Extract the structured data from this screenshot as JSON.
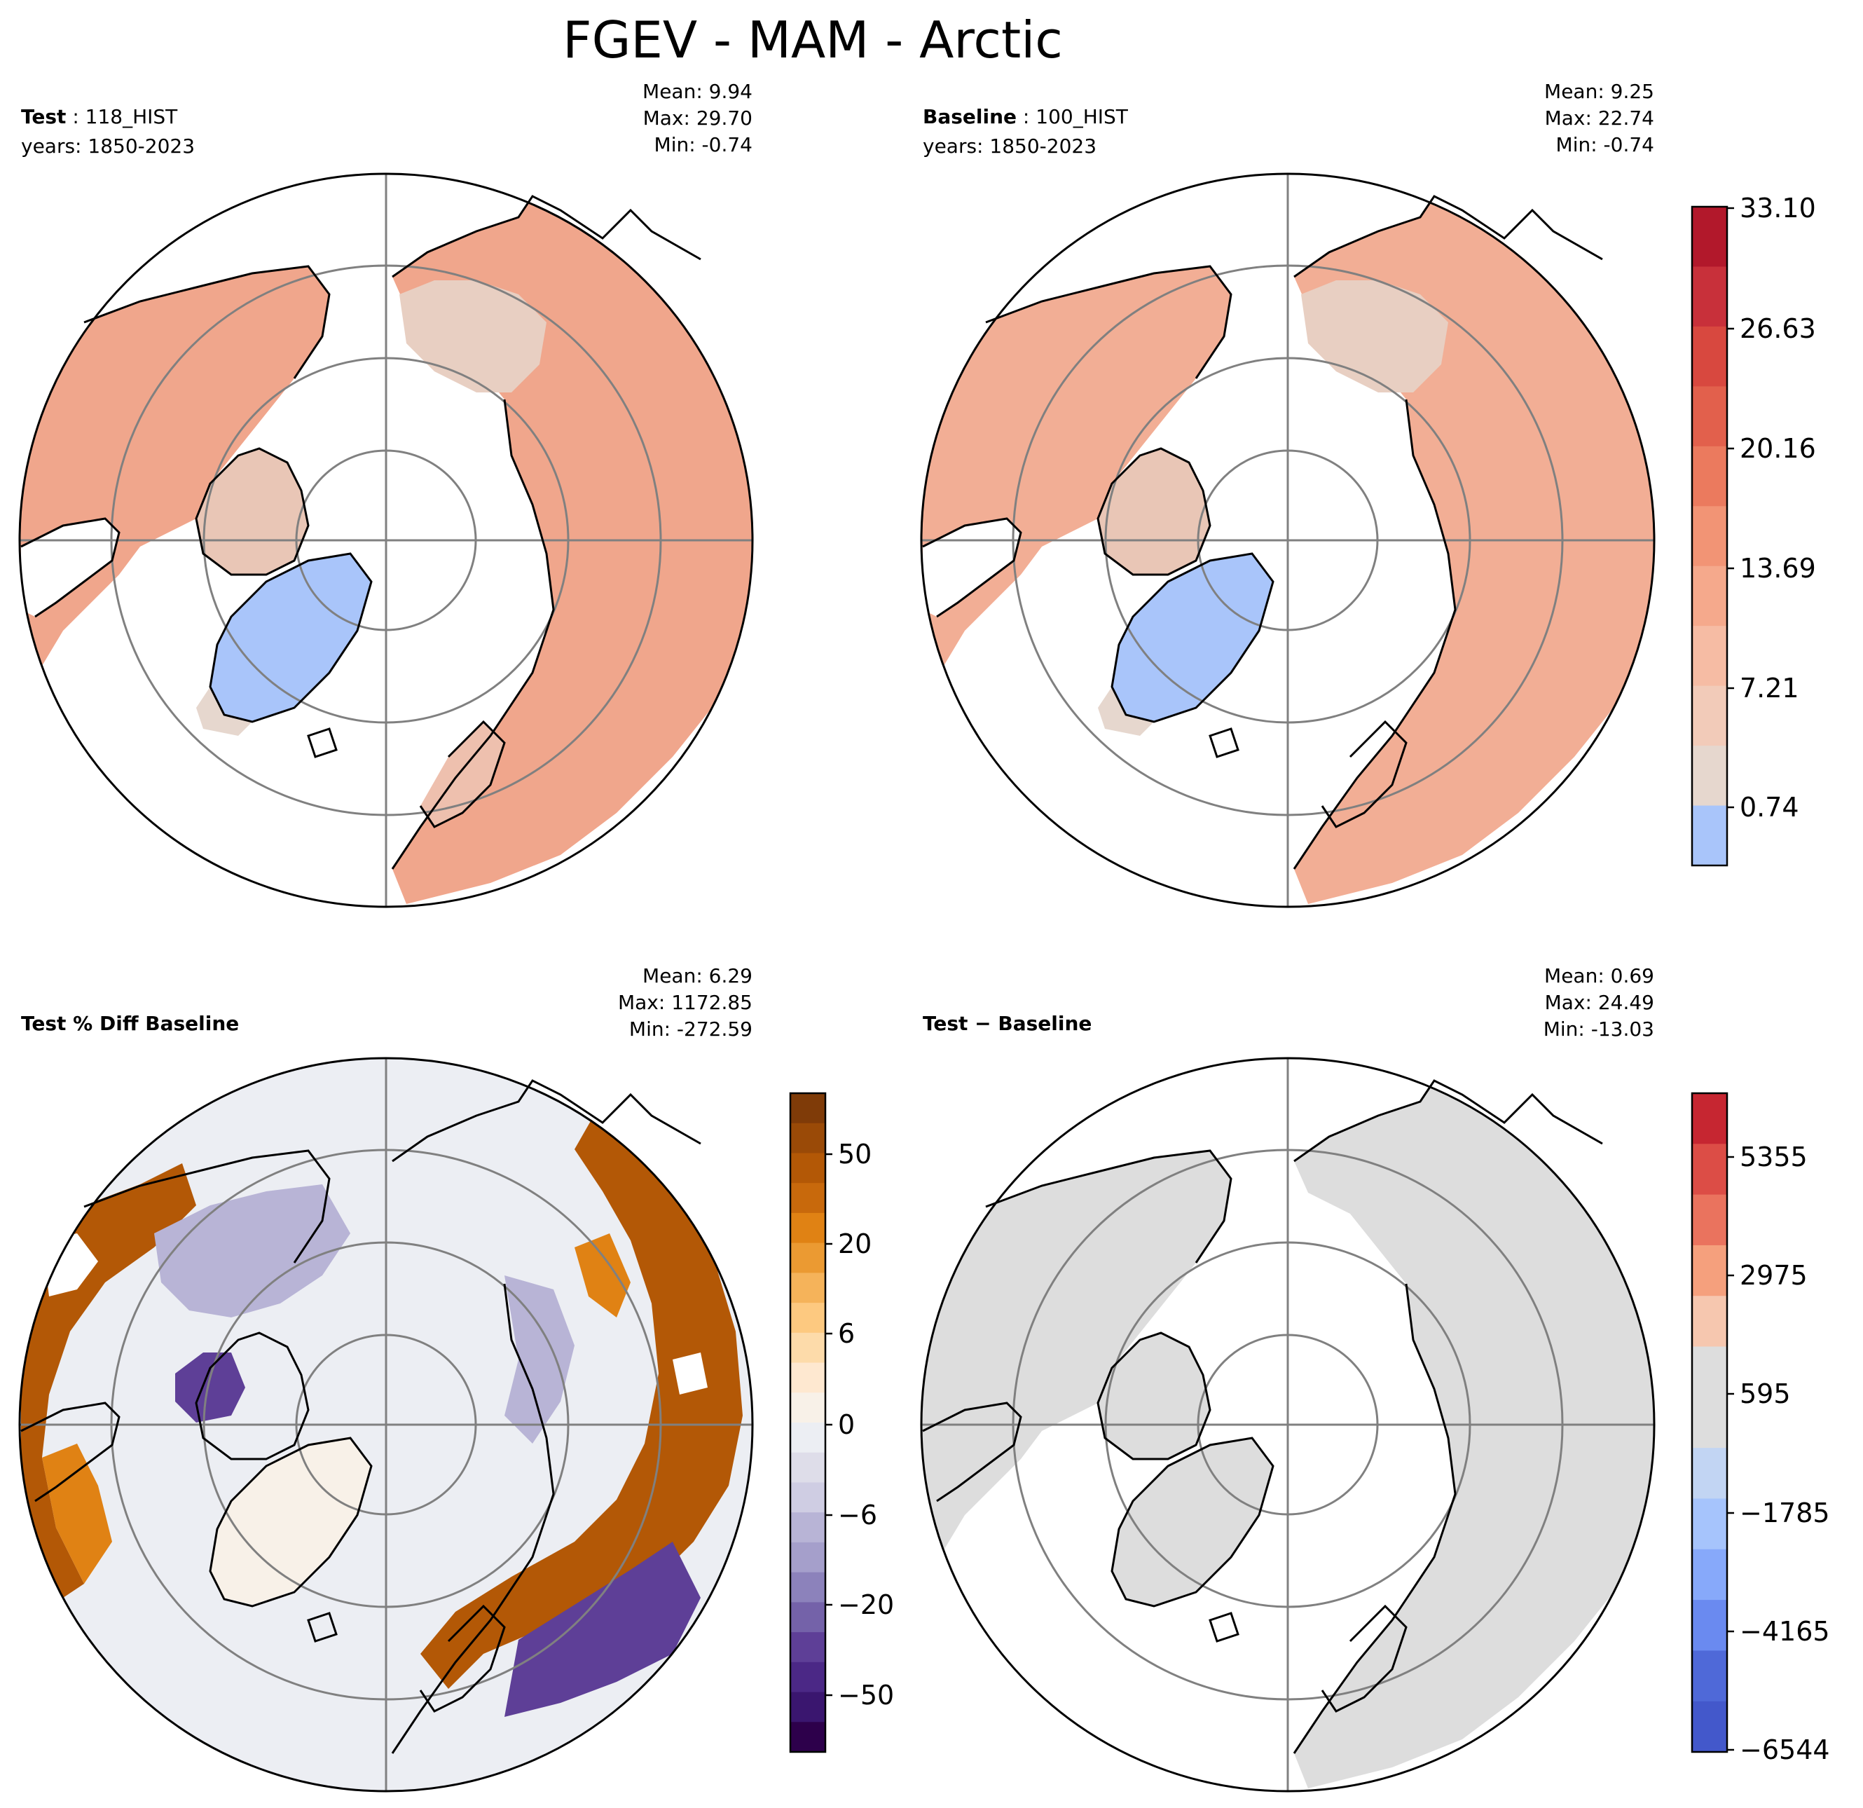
{
  "chart_data": {
    "title": "FGEV - MAM - Arctic",
    "type": "polar-contour-map",
    "panels": [
      {
        "name": "test",
        "label_bold": "Test",
        "label_rest": " : 118_HIST",
        "years": "years: 1850-2023",
        "stats": [
          "Mean:  9.94",
          "Max: 29.70",
          "Min: -0.74"
        ],
        "mean": 9.94,
        "max": 29.7,
        "min": -0.74,
        "scheme": "abs"
      },
      {
        "name": "baseline",
        "label_bold": "Baseline",
        "label_rest": " : 100_HIST",
        "years": "years: 1850-2023",
        "stats": [
          "Mean:  9.25",
          "Max: 22.74",
          "Min: -0.74"
        ],
        "mean": 9.25,
        "max": 22.74,
        "min": -0.74,
        "scheme": "abs"
      },
      {
        "name": "pct-diff",
        "label_bold": "Test % Diff Baseline",
        "label_rest": "",
        "years": "",
        "stats": [
          "Mean:  6.29",
          "Max: 1172.85",
          "Min: -272.59"
        ],
        "mean": 6.29,
        "max": 1172.85,
        "min": -272.59,
        "scheme": "pct"
      },
      {
        "name": "diff",
        "label_bold": "Test",
        "label_rest": " − Baseline",
        "years": "",
        "stats": [
          "Mean:  0.69",
          "Max: 24.49",
          "Min: -13.03"
        ],
        "mean": 0.69,
        "max": 24.49,
        "min": -13.03,
        "scheme": "diff"
      }
    ],
    "colorbars": [
      {
        "name": "abs",
        "ticks": [
          "33.10",
          "26.63",
          "20.16",
          "13.69",
          "7.21",
          "0.74"
        ],
        "levels": 11,
        "colors": [
          "#b2182b",
          "#c8303a",
          "#d8483f",
          "#e2604c",
          "#eb7a5e",
          "#f29475",
          "#f5a98c",
          "#f6bca4",
          "#f2cbb9",
          "#e6d7ce",
          "#a9c5fa"
        ]
      },
      {
        "name": "pct",
        "ticks": [
          "50",
          "20",
          "6",
          "0",
          "−6",
          "−20",
          "−50"
        ],
        "colors": [
          "#7f3b08",
          "#9a4a07",
          "#b35806",
          "#c8690c",
          "#e08214",
          "#eb9a32",
          "#f5b35a",
          "#fdc980",
          "#fddbaa",
          "#fee8d0",
          "#f8f1e8",
          "#eceef3",
          "#dedde9",
          "#cfcde3",
          "#b8b4d6",
          "#a59fcb",
          "#8c82bb",
          "#7462a9",
          "#5e3f97",
          "#4b2886",
          "#3a166f",
          "#2d004b"
        ]
      },
      {
        "name": "diff",
        "ticks": [
          "5355",
          "2975",
          "595",
          "−1785",
          "−4165",
          "−6544"
        ],
        "colors": [
          "#c62631",
          "#dc4d46",
          "#ea735e",
          "#f5a07d",
          "#f6c7af",
          "#dddddd",
          "#dddddd",
          "#c2d5f3",
          "#a6c4fc",
          "#87a9fa",
          "#6a8af0",
          "#4f69d8",
          "#4358cb"
        ]
      }
    ],
    "grid": "polar stereographic, latitude circles 60N, 70N, 80N; meridians every 90 degrees"
  }
}
